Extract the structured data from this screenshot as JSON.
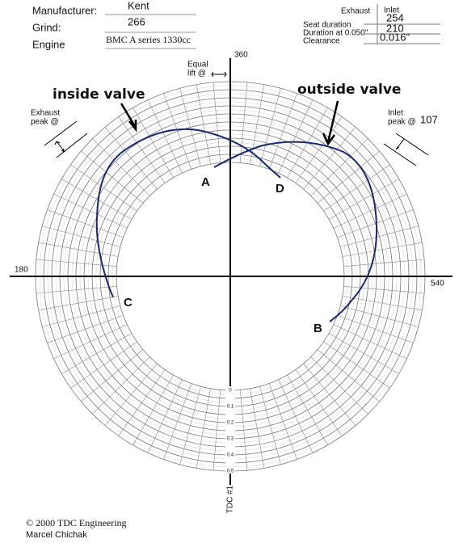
{
  "header": {
    "manufacturer_label": "Manufacturer:",
    "manufacturer": "Kent",
    "grind_label": "Grind:",
    "grind": "266",
    "engine_label": "Engine",
    "engine": "BMC A series 1330cc"
  },
  "specs": {
    "exhaust_header": "Exhaust",
    "inlet_header": "Inlet",
    "seat_duration_label": "Seat duration",
    "seat_duration_inlet": "254",
    "duration_label": "Duration at 0.050\"",
    "duration_inlet": "210",
    "clearance_label": "Clearance",
    "clearance_inlet": "0.016\""
  },
  "axes": {
    "top": "360",
    "left": "180",
    "right": "540",
    "bottom": "TDC #1"
  },
  "scale": [
    "0",
    "0.1",
    "0.2",
    "0.3",
    "0.4",
    "0.5"
  ],
  "annotations": {
    "equal_lift_1": "Equal",
    "equal_lift_2": "lift @",
    "inside_valve": "inside valve",
    "outside_valve": "outside valve",
    "exhaust_peak_1": "Exhaust",
    "exhaust_peak_2": "peak @",
    "inlet_peak_1": "Inlet",
    "inlet_peak_2": "peak @",
    "inlet_peak_value": "107"
  },
  "points": {
    "a": "A",
    "b": "B",
    "c": "C",
    "d": "D"
  },
  "footer": {
    "copyright": "© 2000 TDC Engineering",
    "author": "Marcel Chichak"
  }
}
